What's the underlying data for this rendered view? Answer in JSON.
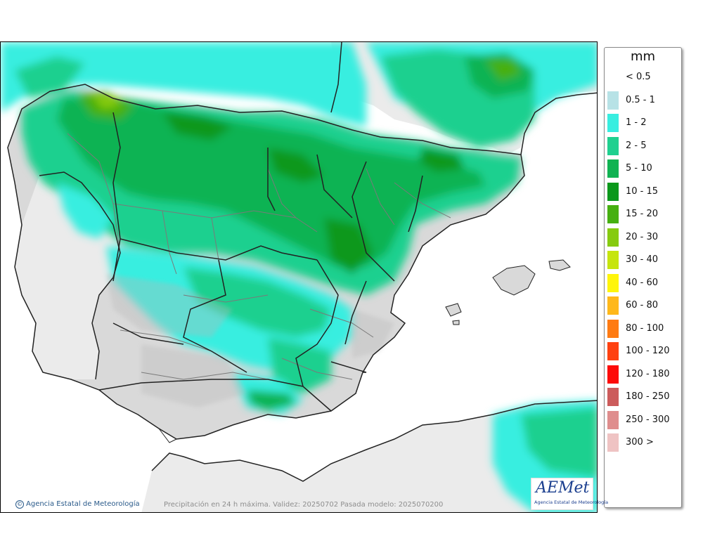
{
  "legend": {
    "unit": "mm",
    "entries": [
      {
        "label": "< 0.5",
        "color": "#ffffff"
      },
      {
        "label": "0.5 - 1",
        "color": "#b7e2e6"
      },
      {
        "label": "1 - 2",
        "color": "#38eee0"
      },
      {
        "label": "2 - 5",
        "color": "#1fd08f"
      },
      {
        "label": "5 - 10",
        "color": "#10b352"
      },
      {
        "label": "10 - 15",
        "color": "#0a981b"
      },
      {
        "label": "15 - 20",
        "color": "#46b011"
      },
      {
        "label": "20 - 30",
        "color": "#86cb10"
      },
      {
        "label": "30 - 40",
        "color": "#c6e50e"
      },
      {
        "label": "40 - 60",
        "color": "#fff50b"
      },
      {
        "label": "60 - 80",
        "color": "#ffb81a"
      },
      {
        "label": "80 - 100",
        "color": "#ff7b12"
      },
      {
        "label": "100 - 120",
        "color": "#ff4110"
      },
      {
        "label": "120 - 180",
        "color": "#fd0b08"
      },
      {
        "label": "180 - 250",
        "color": "#cc5b5b"
      },
      {
        "label": "250 - 300",
        "color": "#df8d8d"
      },
      {
        "label": "300 >",
        "color": "#efc3c3"
      }
    ]
  },
  "credit": "Agencia Estatal de Meteorología",
  "caption": "Precipitación en 24 h máxima. Validez: 20250702 Pasada modelo: 2025070200",
  "logo": {
    "word": "AEMet",
    "subtitle": "Agencia Estatal de Meteorología",
    "alt_text": "AEMET logo"
  },
  "colors": {
    "sea": "#ffffff",
    "land": "#d9d9d9",
    "outside_land": "#ebebeb",
    "border": "#222222",
    "province": "#7a7a7a"
  }
}
